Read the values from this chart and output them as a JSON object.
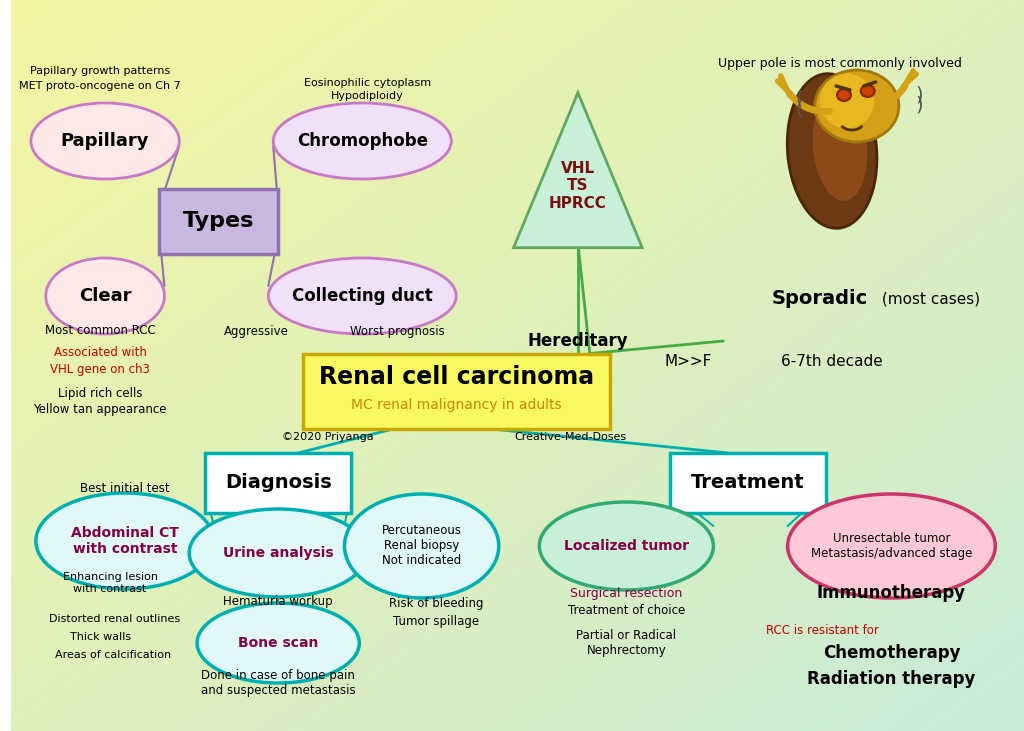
{
  "fig_w": 10.24,
  "fig_h": 7.31,
  "dpi": 100,
  "main_title": "Renal cell carcinoma",
  "main_sub": "MC renal malignancy in adults",
  "copyright": "©2020 Priyanga",
  "watermark": "Creative-Med-Doses",
  "types_label": "Types",
  "papillary_label": "Papillary",
  "chromophobe_label": "Chromophobe",
  "clear_label": "Clear",
  "collecting_label": "Collecting duct",
  "hereditary_label": "Hereditary",
  "vhl_label": "VHL\nTS\nHPRCC",
  "sporadic_label": "Sporadic",
  "sporadic_sub": " (most cases)",
  "upper_pole": "Upper pole is most commonly involved",
  "mf": "M>>F",
  "decade": "6-7th decade",
  "pap_note1": "Papillary growth patterns",
  "pap_note2": "MET proto-oncogene on Ch 7",
  "chrom_note1": "Eosinophilic cytoplasm",
  "chrom_note2": "Hypodiploidy",
  "clear_note1": "Most common RCC",
  "clear_note2": "Associated with",
  "clear_note3": "VHL gene on ch3",
  "clear_note4": "Lipid rich cells",
  "clear_note5": "Yellow tan appearance",
  "coll_note1": "Aggressive",
  "coll_note2": "Worst prognosis",
  "diag_label": "Diagnosis",
  "abct_label": "Abdominal CT\nwith contrast",
  "urine_label": "Urine analysis",
  "bone_label": "Bone scan",
  "rb_label": "Percutaneous\nRenal biopsy\nNot indicated",
  "best_init": "Best initial test",
  "hematuria": "Hematuria workup",
  "bone_note": "Done in case of bone pain\nand suspected metastasis",
  "risk_bleed": "Risk of bleeding",
  "tumor_spill": "Tumor spillage",
  "ct_note1": "Enhancing lesion\nwith contrast",
  "ct_note2": "Distorted renal outlines",
  "ct_note3": "Thick walls",
  "ct_note4": "Areas of calcification",
  "treat_label": "Treatment",
  "loc_label": "Localized tumor",
  "unr_label": "Unresectable tumor\nMetastasis/advanced stage",
  "surg": "Surgical resection",
  "toc": "Treatment of choice",
  "neph": "Partial or Radical\nNephrectomy",
  "immuno": "Immunotherapy",
  "rcc_resist": "RCC is resistant for",
  "chemo": "Chemotherapy",
  "rad": "Radiation therapy",
  "col_purple_face": "#c8b8e0",
  "col_purple_edge": "#9070b0",
  "col_pink_face": "#ffe8e8",
  "col_pink_face2": "#f0e0f8",
  "col_pink_edge": "#c878c8",
  "col_teal_edge": "#00b0b0",
  "col_teal_face": "#e0f8f8",
  "col_green_face": "#c8f0d8",
  "col_green_edge": "#60a860",
  "col_loc_face": "#c8f0d8",
  "col_loc_edge": "#30aa70",
  "col_unr_face": "#ffc8d8",
  "col_unr_edge": "#cc3366",
  "col_yellow_face": "#f8f860",
  "col_yellow_edge": "#c8a800",
  "col_red_txt": "#cc0000",
  "col_maroon": "#7a0000",
  "col_dark_green_line": "#44aa44"
}
